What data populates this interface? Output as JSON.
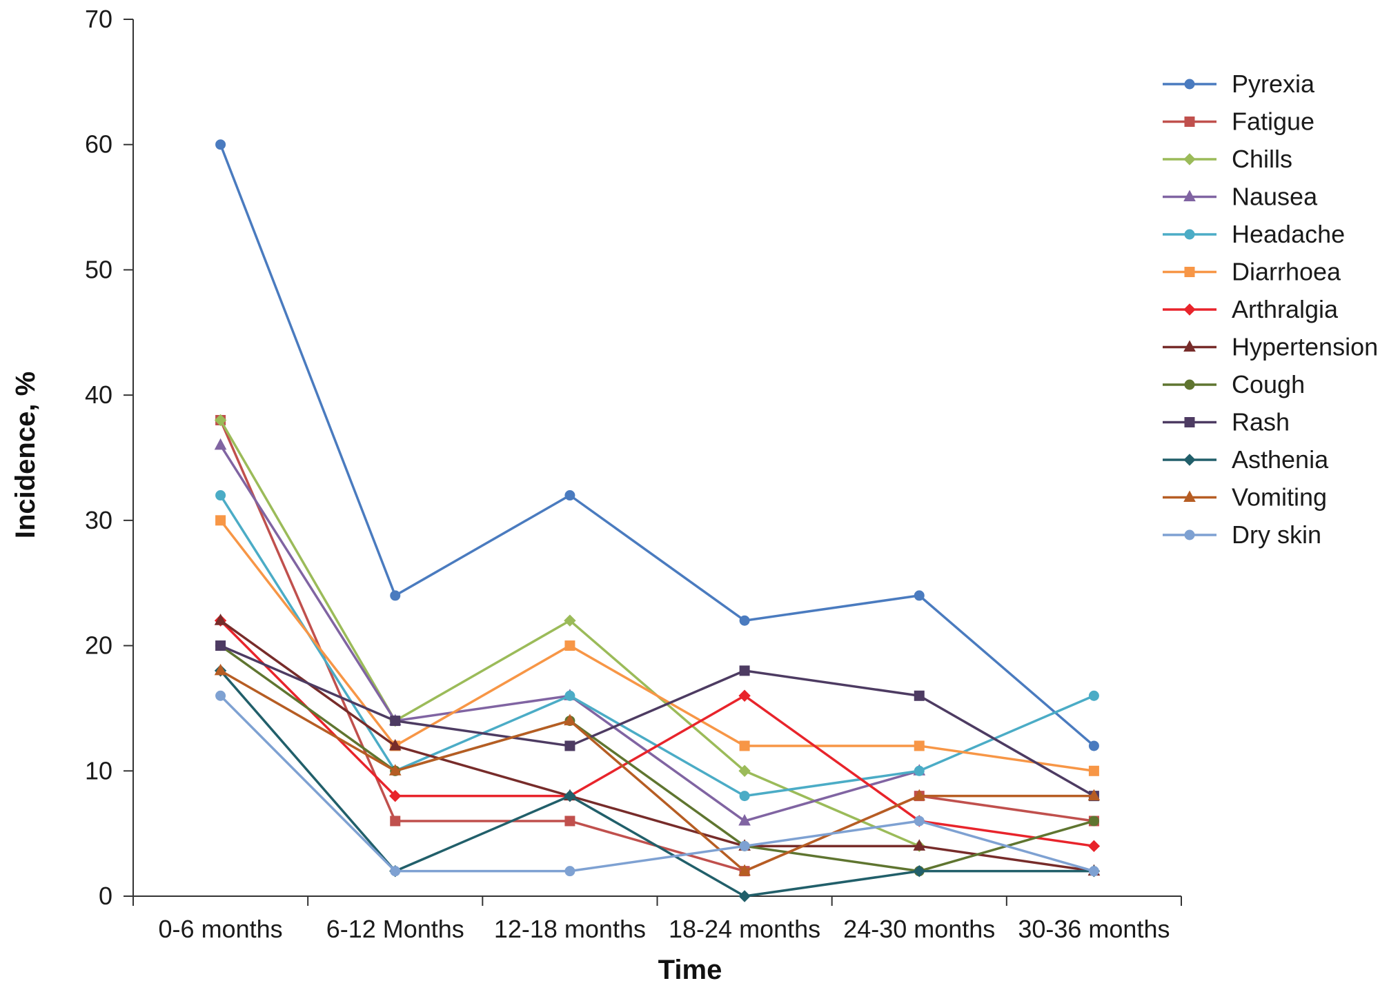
{
  "chart_data": {
    "type": "line",
    "title": "",
    "xlabel": "Time",
    "ylabel": "Incidence, %",
    "ylim": [
      0,
      70
    ],
    "yticks": [
      0,
      10,
      20,
      30,
      40,
      50,
      60,
      70
    ],
    "categories": [
      "0-6 months",
      "6-12 Months",
      "12-18 months",
      "18-24 months",
      "24-30 months",
      "30-36 months"
    ],
    "legend_position": "right",
    "grid": false,
    "series": [
      {
        "name": "Pyrexia",
        "color": "#4a7bbf",
        "marker": "circle",
        "values": [
          60,
          24,
          32,
          22,
          24,
          12
        ]
      },
      {
        "name": "Fatigue",
        "color": "#c0504d",
        "marker": "square",
        "values": [
          38,
          6,
          6,
          2,
          8,
          6
        ]
      },
      {
        "name": "Chills",
        "color": "#9bbb59",
        "marker": "diamond",
        "values": [
          38,
          14,
          22,
          10,
          4,
          null
        ]
      },
      {
        "name": "Nausea",
        "color": "#8064a2",
        "marker": "triangle",
        "values": [
          36,
          14,
          16,
          6,
          10,
          null
        ]
      },
      {
        "name": "Headache",
        "color": "#4bacc6",
        "marker": "circle",
        "values": [
          32,
          10,
          16,
          8,
          10,
          16
        ]
      },
      {
        "name": "Diarrhoea",
        "color": "#f79646",
        "marker": "square",
        "values": [
          30,
          12,
          20,
          12,
          12,
          10
        ]
      },
      {
        "name": "Arthralgia",
        "color": "#e8242b",
        "marker": "diamond",
        "values": [
          22,
          8,
          8,
          16,
          6,
          4
        ]
      },
      {
        "name": "Hypertension",
        "color": "#772c2a",
        "marker": "triangle",
        "values": [
          22,
          12,
          8,
          4,
          4,
          2
        ]
      },
      {
        "name": "Cough",
        "color": "#5f7530",
        "marker": "circle",
        "values": [
          20,
          10,
          14,
          4,
          2,
          6
        ]
      },
      {
        "name": "Rash",
        "color": "#4d3b62",
        "marker": "square",
        "values": [
          20,
          14,
          12,
          18,
          16,
          8
        ]
      },
      {
        "name": "Asthenia",
        "color": "#215f6a",
        "marker": "diamond",
        "values": [
          18,
          2,
          8,
          0,
          2,
          2
        ]
      },
      {
        "name": "Vomiting",
        "color": "#b65d23",
        "marker": "triangle",
        "values": [
          18,
          10,
          14,
          2,
          8,
          8
        ]
      },
      {
        "name": "Dry skin",
        "color": "#7ea1d2",
        "marker": "circle",
        "values": [
          16,
          2,
          2,
          4,
          6,
          2
        ]
      }
    ]
  }
}
